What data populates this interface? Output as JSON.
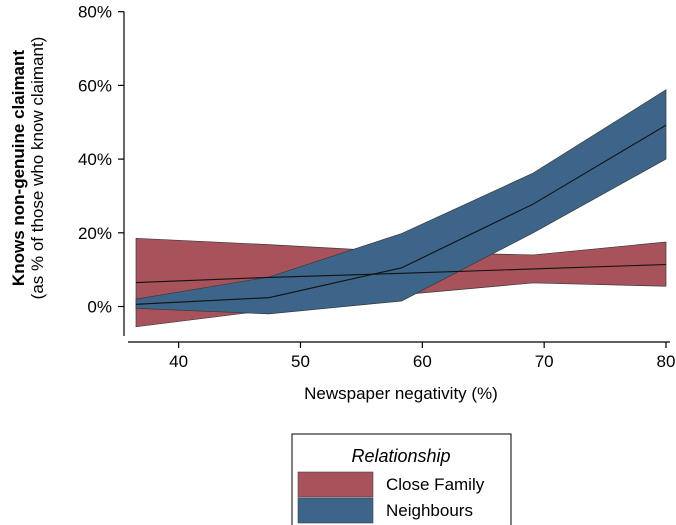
{
  "chart_data": {
    "type": "line",
    "title": "",
    "xlabel": "Newspaper negativity (%)",
    "ylabel": {
      "main": "Knows non-genuine claimant",
      "sub": "(as % of those who know claimant)"
    },
    "xlim": [
      36.5,
      80
    ],
    "ylim": [
      -8,
      81
    ],
    "xticks": [
      40,
      50,
      60,
      70,
      80
    ],
    "xtick_labels": [
      "40",
      "50",
      "60",
      "70",
      "80"
    ],
    "yticks": [
      0,
      20,
      40,
      60,
      80
    ],
    "ytick_labels": [
      "0%",
      "20%",
      "40%",
      "60%",
      "80%"
    ],
    "grid": false,
    "legend": {
      "title": "Relationship",
      "position": "bottom",
      "entries": [
        "Close Family",
        "Neighbours"
      ]
    },
    "x": [
      36.5,
      47.4,
      58.3,
      69.1,
      80
    ],
    "series": [
      {
        "name": "Close Family",
        "color": "#A8525C",
        "values": [
          6.5,
          7.9,
          9.0,
          10.2,
          11.4
        ],
        "lower": [
          -5.5,
          -1.0,
          3.2,
          6.4,
          5.5
        ],
        "upper": [
          18.5,
          16.8,
          14.8,
          14.0,
          17.5
        ]
      },
      {
        "name": "Neighbours",
        "color": "#3D6589",
        "values": [
          0.6,
          2.4,
          10.5,
          27.8,
          49.2
        ],
        "lower": [
          -0.5,
          -2.0,
          1.5,
          20.0,
          40.0
        ],
        "upper": [
          2.0,
          8.0,
          19.8,
          36.2,
          58.8
        ]
      }
    ]
  }
}
